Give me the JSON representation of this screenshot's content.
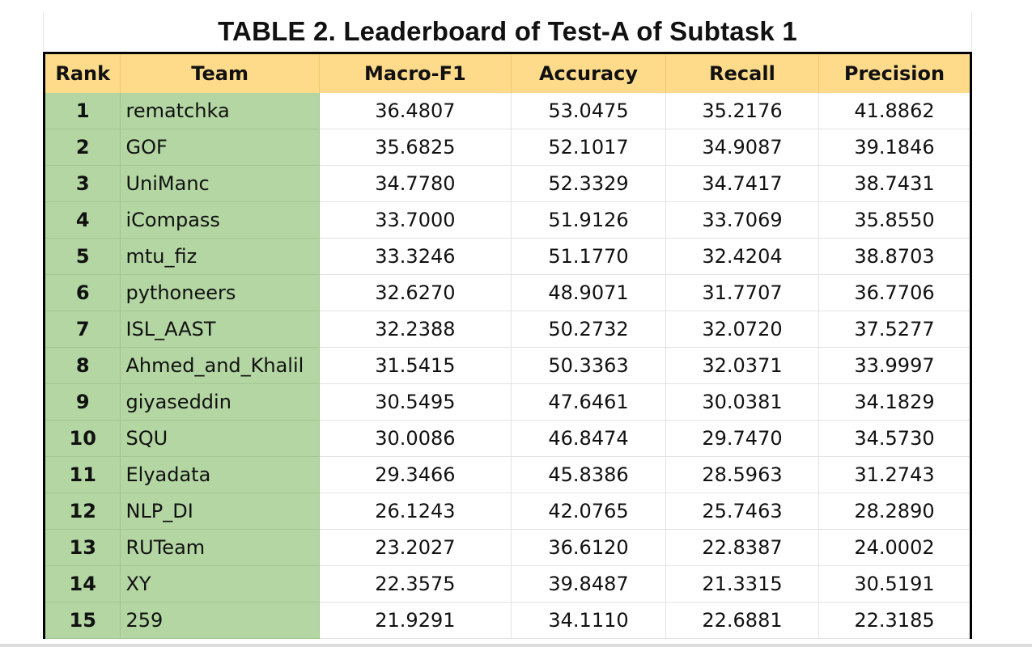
{
  "title": "TABLE 2. Leaderboard of Test-A of Subtask 1",
  "columns": [
    "Rank",
    "Team",
    "Macro-F1",
    "Accuracy",
    "Recall",
    "Precision"
  ],
  "rows": [
    [
      "1",
      "rematchka",
      "36.4807",
      "53.0475",
      "35.2176",
      "41.8862"
    ],
    [
      "2",
      "GOF",
      "35.6825",
      "52.1017",
      "34.9087",
      "39.1846"
    ],
    [
      "3",
      "UniManc",
      "34.7780",
      "52.3329",
      "34.7417",
      "38.7431"
    ],
    [
      "4",
      "iCompass",
      "33.7000",
      "51.9126",
      "33.7069",
      "35.8550"
    ],
    [
      "5",
      "mtu_fiz",
      "33.3246",
      "51.1770",
      "32.4204",
      "38.8703"
    ],
    [
      "6",
      "pythoneers",
      "32.6270",
      "48.9071",
      "31.7707",
      "36.7706"
    ],
    [
      "7",
      "ISL_AAST",
      "32.2388",
      "50.2732",
      "32.0720",
      "37.5277"
    ],
    [
      "8",
      "Ahmed_and_Khalil",
      "31.5415",
      "50.3363",
      "32.0371",
      "33.9997"
    ],
    [
      "9",
      "giyaseddin",
      "30.5495",
      "47.6461",
      "30.0381",
      "34.1829"
    ],
    [
      "10",
      "SQU",
      "30.0086",
      "46.8474",
      "29.7470",
      "34.5730"
    ],
    [
      "11",
      "Elyadata",
      "29.3466",
      "45.8386",
      "28.5963",
      "31.2743"
    ],
    [
      "12",
      "NLP_DI",
      "26.1243",
      "42.0765",
      "25.7463",
      "28.2890"
    ],
    [
      "13",
      "RUTeam",
      "23.2027",
      "36.6120",
      "22.8387",
      "24.0002"
    ],
    [
      "14",
      "XY",
      "22.3575",
      "39.8487",
      "21.3315",
      "30.5191"
    ],
    [
      "15",
      "259",
      "21.9291",
      "34.1110",
      "22.6881",
      "22.3185"
    ]
  ],
  "colors": {
    "header_bg": "#fddb8a",
    "rank_team_bg": "#b3d6a3",
    "border": "#000000"
  }
}
